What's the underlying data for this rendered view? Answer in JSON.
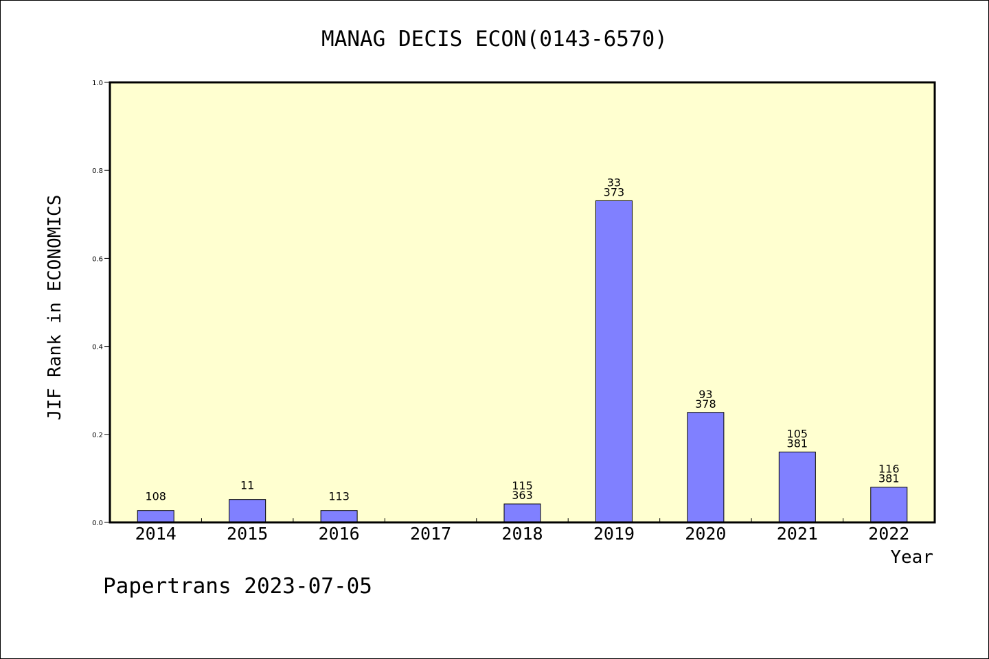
{
  "chart_data": {
    "type": "bar",
    "title": "MANAG DECIS ECON(0143-6570)",
    "xlabel": "Year",
    "ylabel": "JIF Rank in ECONOMICS",
    "ylim": [
      0,
      1.0
    ],
    "yticks": [
      "0.0",
      "0.2",
      "0.4",
      "0.6",
      "0.8",
      "1.0"
    ],
    "grid": false,
    "categories": [
      "2014",
      "2015",
      "2016",
      "2017",
      "2018",
      "2019",
      "2020",
      "2021",
      "2022"
    ],
    "values": [
      0.027,
      0.052,
      0.027,
      0,
      0.042,
      0.731,
      0.25,
      0.16,
      0.08
    ],
    "bar_labels": [
      [
        "108"
      ],
      [
        "11"
      ],
      [
        "113"
      ],
      [],
      [
        "115",
        "363"
      ],
      [
        "33",
        "373"
      ],
      [
        "93",
        "378"
      ],
      [
        "105",
        "381"
      ],
      [
        "116",
        "381"
      ]
    ],
    "colors": {
      "bar": "#8080ff",
      "plot_background": "#ffffd0"
    }
  },
  "footer": {
    "credit": "Papertrans 2023-07-05"
  }
}
